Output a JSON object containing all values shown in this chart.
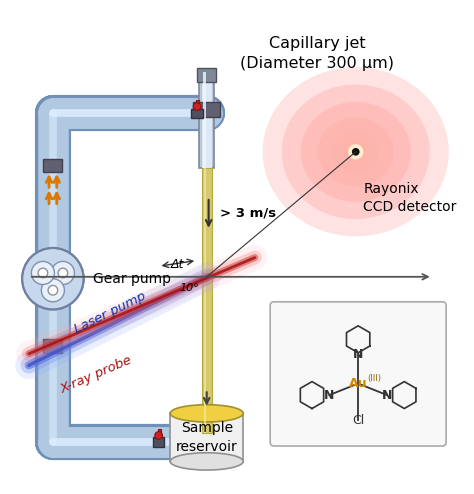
{
  "bg_color": "#ffffff",
  "capillary_jet_label": "Capillary jet\n(Diameter 300 μm)",
  "speed_label": "> 3 m/s",
  "gear_pump_label": "Gear pump",
  "laser_pump_label": "Laser pump",
  "xray_probe_label": "X-ray probe",
  "detector_label": "Rayonix\nCCD detector",
  "reservoir_label": "Sample\nreservoir",
  "delta_t_label": "Δt",
  "angle_label": "10°",
  "tube_color_light": "#c8d8ee",
  "tube_color_mid": "#8aa8cc",
  "tube_color_dark": "#6688aa",
  "jet_color": "#d4c870",
  "jet_edge": "#b8a840",
  "valve_color": "#cc2222",
  "fitting_color": "#888898",
  "pump_body_color": "#c0d4e8",
  "laser_blue": "#4466cc",
  "xray_red": "#cc2222",
  "det_glow": [
    "#ffeedd",
    "#ffccaa",
    "#ff9966",
    "#dd6633",
    "#773300"
  ],
  "arrow_gray": "#444444"
}
